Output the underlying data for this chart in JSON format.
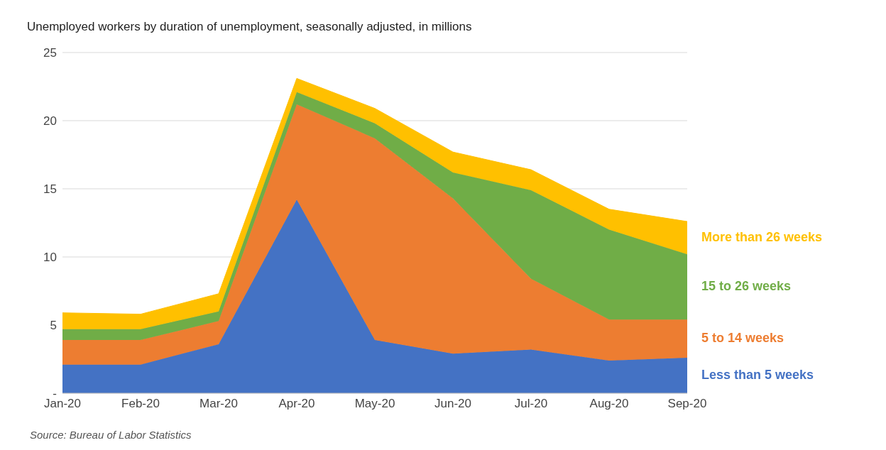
{
  "chart_data": {
    "type": "area",
    "stacked": true,
    "title": "Unemployed workers by duration of unemployment, seasonally adjusted, in millions",
    "categories": [
      "Jan-20",
      "Feb-20",
      "Mar-20",
      "Apr-20",
      "May-20",
      "Jun-20",
      "Jul-20",
      "Aug-20",
      "Sep-20"
    ],
    "series": [
      {
        "name": "Less than 5 weeks",
        "color": "#4472c4",
        "values": [
          2.1,
          2.1,
          3.6,
          14.2,
          3.9,
          2.9,
          3.2,
          2.4,
          2.6
        ]
      },
      {
        "name": "5 to 14 weeks",
        "color": "#ed7d31",
        "values": [
          1.8,
          1.8,
          1.7,
          7.0,
          14.8,
          11.4,
          5.2,
          3.0,
          2.8
        ]
      },
      {
        "name": "15 to 26 weeks",
        "color": "#70ad47",
        "values": [
          0.8,
          0.8,
          0.7,
          0.9,
          1.1,
          1.9,
          6.5,
          6.6,
          4.8
        ]
      },
      {
        "name": "More than 26 weeks",
        "color": "#ffc000",
        "values": [
          1.2,
          1.1,
          1.3,
          1.0,
          1.1,
          1.5,
          1.5,
          1.5,
          2.4
        ]
      }
    ],
    "ylim": [
      0,
      25
    ],
    "yticks": [
      {
        "value": 0,
        "label": "-"
      },
      5,
      10,
      15,
      20,
      25
    ],
    "grid": "y",
    "legend": false,
    "annotations": [
      "Source:  Bureau of Labor Statistics"
    ]
  }
}
